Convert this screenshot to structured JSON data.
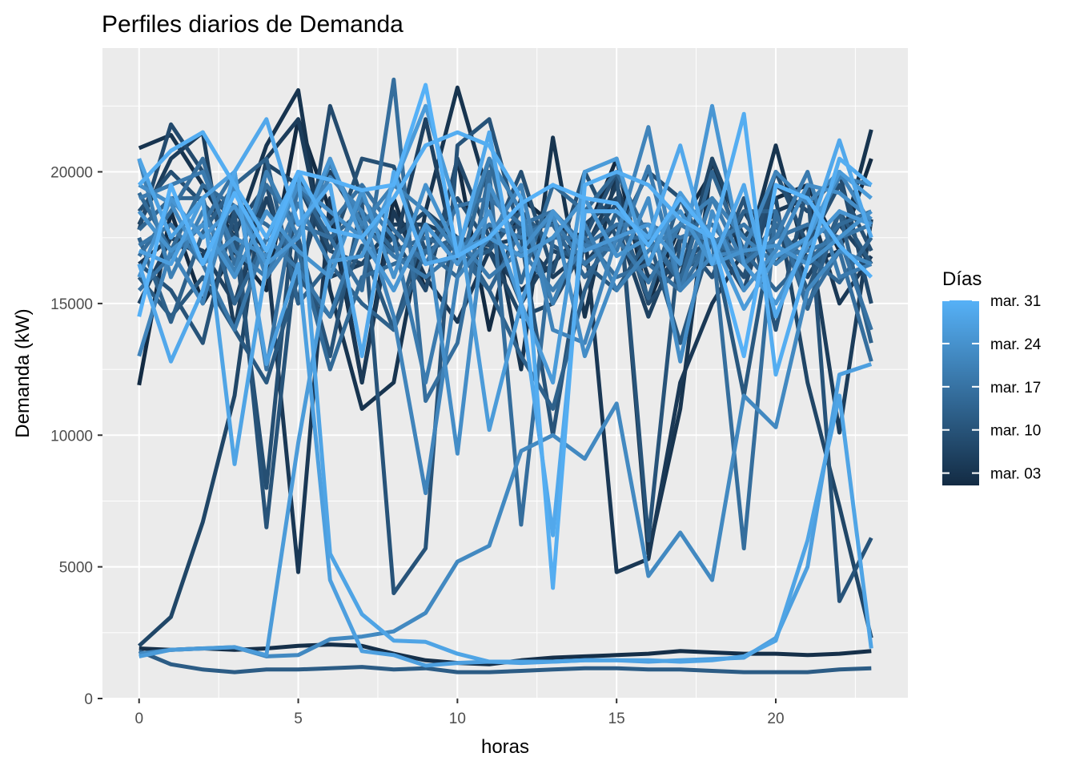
{
  "chart_data": {
    "type": "line",
    "title": "Perfiles diarios de Demanda",
    "xlabel": "horas",
    "ylabel": "Demanda (kW)",
    "xlim": [
      -1.15,
      24.15
    ],
    "ylim": [
      0,
      24700
    ],
    "x_ticks": [
      0,
      5,
      10,
      15,
      20
    ],
    "y_ticks": [
      0,
      5000,
      10000,
      15000,
      20000
    ],
    "x_minor": [
      2.5,
      7.5,
      12.5,
      17.5,
      22.5
    ],
    "y_minor": [
      2500,
      7500,
      12500,
      17500,
      22500
    ],
    "grid": true,
    "legend": {
      "title": "Días",
      "position": "right",
      "labels": [
        "mar. 31",
        "mar. 24",
        "mar. 17",
        "mar. 10",
        "mar. 03"
      ],
      "color_low": "#132B43",
      "color_high": "#56B1F7"
    },
    "colors": {
      "panel": "#EBEBEB",
      "grid": "#FFFFFF"
    },
    "x": [
      0,
      1,
      2,
      3,
      4,
      5,
      6,
      7,
      8,
      9,
      10,
      11,
      12,
      13,
      14,
      15,
      16,
      17,
      18,
      19,
      20,
      21,
      22,
      23
    ],
    "series": [
      {
        "day": 1,
        "values": [
          11900,
          18500,
          15000,
          17000,
          15500,
          22000,
          18500,
          12000,
          19000,
          15500,
          20500,
          14000,
          19000,
          18000,
          17500,
          20500,
          15000,
          18000,
          20000,
          17000,
          19000,
          19500,
          17000,
          20500
        ]
      },
      {
        "day": 2,
        "values": [
          1900,
          1850,
          1900,
          1850,
          1900,
          2000,
          2050,
          2000,
          1700,
          1450,
          1350,
          1300,
          1450,
          1550,
          1600,
          1650,
          1700,
          1800,
          1750,
          1700,
          1700,
          1650,
          1700,
          1800
        ]
      },
      {
        "day": 3,
        "values": [
          20900,
          21400,
          19500,
          17500,
          21000,
          23100,
          15500,
          11000,
          12000,
          18500,
          23200,
          19000,
          12500,
          21300,
          14500,
          20000,
          5500,
          11000,
          20500,
          16500,
          21000,
          16500,
          17000,
          21600
        ]
      },
      {
        "day": 4,
        "values": [
          16500,
          17500,
          16800,
          18500,
          17000,
          4800,
          19000,
          12000,
          18500,
          16000,
          14300,
          17000,
          15500,
          16500,
          17800,
          4800,
          5300,
          12000,
          15000,
          17000,
          18500,
          19000,
          15000,
          16800
        ]
      },
      {
        "day": 5,
        "values": [
          18000,
          20500,
          21500,
          14000,
          20500,
          22000,
          16000,
          16500,
          18000,
          18000,
          17500,
          17200,
          17500,
          16000,
          17000,
          19500,
          16000,
          16500,
          16500,
          18500,
          16500,
          18000,
          10100,
          18200
        ]
      },
      {
        "day": 6,
        "values": [
          15000,
          17500,
          17000,
          15000,
          19000,
          16000,
          20000,
          18000,
          17000,
          22000,
          16500,
          18000,
          15000,
          17000,
          16500,
          18000,
          14500,
          17500,
          16000,
          18500,
          18000,
          16000,
          18000,
          16500
        ]
      },
      {
        "day": 7,
        "values": [
          2000,
          3100,
          6700,
          11500,
          20300,
          19500,
          17000,
          16500,
          17500,
          18500,
          17500,
          17000,
          14500,
          15000,
          18000,
          19000,
          16500,
          16000,
          20500,
          17500,
          19000,
          12000,
          7300,
          2300
        ]
      },
      {
        "day": 8,
        "values": [
          17800,
          21800,
          20000,
          17800,
          19500,
          15000,
          22500,
          19000,
          17500,
          15500,
          20500,
          17500,
          18000,
          15000,
          17200,
          18800,
          15000,
          16500,
          17500,
          15500,
          19500,
          18500,
          20000,
          15000
        ]
      },
      {
        "day": 9,
        "values": [
          18500,
          20000,
          18800,
          17500,
          8000,
          20000,
          17000,
          20500,
          20200,
          17000,
          19000,
          17200,
          20000,
          16200,
          20000,
          17500,
          20000,
          19000,
          17500,
          16000,
          20000,
          17200,
          19500,
          17000
        ]
      },
      {
        "day": 10,
        "values": [
          16500,
          15500,
          13500,
          18500,
          6500,
          17500,
          13000,
          18800,
          4000,
          5700,
          21000,
          22000,
          17500,
          10000,
          17500,
          20000,
          6000,
          17500,
          16000,
          19000,
          14000,
          19500,
          3700,
          6100
        ]
      },
      {
        "day": 11,
        "values": [
          16000,
          14500,
          16000,
          14000,
          12000,
          16000,
          14500,
          17200,
          14000,
          18000,
          16500,
          17000,
          18500,
          17200,
          16500,
          15500,
          17500,
          13500,
          17500,
          11500,
          18500,
          15500,
          18500,
          16500
        ]
      },
      {
        "day": 12,
        "values": [
          1800,
          1300,
          1100,
          1000,
          1100,
          1100,
          1150,
          1200,
          1100,
          1150,
          1000,
          1000,
          1050,
          1100,
          1150,
          1150,
          1100,
          1100,
          1050,
          1000,
          1000,
          1000,
          1100,
          1150
        ]
      },
      {
        "day": 13,
        "values": [
          17500,
          14300,
          17700,
          19500,
          20500,
          15000,
          16500,
          15000,
          14000,
          17000,
          17500,
          15500,
          13000,
          11000,
          15500,
          18500,
          15200,
          19000,
          16500,
          18500,
          18500,
          14800,
          18500,
          13500
        ]
      },
      {
        "day": 14,
        "values": [
          17800,
          19000,
          19000,
          15000,
          17500,
          19500,
          17500,
          18500,
          17000,
          17500,
          17000,
          15500,
          17800,
          18000,
          16000,
          17500,
          17500,
          15800,
          20000,
          17000,
          15500,
          16800,
          15800,
          17500
        ]
      },
      {
        "day": 15,
        "values": [
          19200,
          17000,
          19500,
          18700,
          18000,
          17000,
          12500,
          16000,
          16500,
          17000,
          16000,
          20500,
          15800,
          19500,
          18500,
          20000,
          17500,
          16000,
          17500,
          16500,
          18000,
          16500,
          18000,
          18500
        ]
      },
      {
        "day": 16,
        "values": [
          16800,
          18500,
          20500,
          16500,
          19500,
          18000,
          17500,
          15500,
          23500,
          11300,
          13500,
          20000,
          6600,
          17500,
          17500,
          16000,
          16500,
          15500,
          17500,
          5700,
          18500,
          15000,
          17000,
          12800
        ]
      },
      {
        "day": 17,
        "values": [
          15500,
          16800,
          18000,
          20000,
          12500,
          19500,
          18000,
          19500,
          17800,
          16500,
          18700,
          19000,
          18000,
          18500,
          17200,
          18000,
          18000,
          17500,
          18000,
          16500,
          17500,
          18000,
          17500,
          14000
        ]
      },
      {
        "day": 18,
        "values": [
          17200,
          18000,
          16500,
          14000,
          17500,
          16300,
          14500,
          18000,
          16800,
          16000,
          17000,
          18000,
          17500,
          18200,
          16500,
          17500,
          15800,
          18000,
          17300,
          18000,
          16800,
          17000,
          17500,
          18000
        ]
      },
      {
        "day": 19,
        "values": [
          19000,
          19500,
          20000,
          17000,
          16000,
          18800,
          16500,
          19000,
          17500,
          12000,
          17500,
          16000,
          17000,
          15500,
          17200,
          17000,
          20200,
          15500,
          19000,
          16500,
          17500,
          20000,
          16000,
          16500
        ]
      },
      {
        "day": 20,
        "values": [
          20500,
          16000,
          18500,
          16200,
          20000,
          17500,
          20300,
          18000,
          19500,
          18500,
          17000,
          20500,
          18500,
          15000,
          18000,
          15500,
          17000,
          18000,
          19000,
          17500,
          16500,
          17500,
          19800,
          19500
        ]
      },
      {
        "day": 21,
        "values": [
          13000,
          17000,
          15000,
          19500,
          16000,
          17700,
          19800,
          18500,
          14500,
          7800,
          16000,
          17500,
          19500,
          14000,
          13500,
          17500,
          21700,
          15500,
          16800,
          17000,
          20000,
          18800,
          20000,
          18000
        ]
      },
      {
        "day": 22,
        "values": [
          1700,
          1850,
          1900,
          1950,
          1600,
          1650,
          2250,
          2350,
          2550,
          3250,
          5200,
          5800,
          9400,
          10000,
          9100,
          11200,
          4650,
          6300,
          4500,
          11500,
          10300,
          15500,
          17000,
          16500
        ]
      },
      {
        "day": 23,
        "values": [
          19500,
          18800,
          16500,
          17500,
          16800,
          19500,
          18500,
          17500,
          15500,
          18000,
          9300,
          19500,
          17000,
          18500,
          13000,
          16200,
          19000,
          12800,
          18500,
          15500,
          17000,
          19500,
          19200,
          18200
        ]
      },
      {
        "day": 24,
        "values": [
          18500,
          17000,
          18000,
          16000,
          18500,
          17000,
          16000,
          19300,
          16000,
          19500,
          17000,
          17500,
          16800,
          17500,
          19000,
          16800,
          17500,
          18500,
          16500,
          17000,
          17200,
          16500,
          17500,
          18500
        ]
      },
      {
        "day": 25,
        "values": [
          16000,
          19000,
          17500,
          18700,
          16500,
          17500,
          20500,
          17500,
          15500,
          18000,
          16500,
          18500,
          15000,
          18500,
          17000,
          17500,
          18000,
          16500,
          22500,
          16500,
          15000,
          17200,
          18500,
          18000
        ]
      },
      {
        "day": 26,
        "values": [
          1600,
          1850,
          1900,
          1950,
          1650,
          9700,
          16600,
          16800,
          19500,
          22500,
          18500,
          10200,
          15000,
          12000,
          20000,
          20500,
          16500,
          19200,
          17500,
          14800,
          16800,
          17500,
          20000,
          19000
        ]
      },
      {
        "day": 27,
        "values": [
          17000,
          16500,
          19000,
          20000,
          12700,
          16500,
          4500,
          1800,
          1650,
          1250,
          1350,
          1400,
          1350,
          1400,
          1450,
          1450,
          1400,
          1450,
          1500,
          1550,
          2300,
          5000,
          12300,
          12700
        ]
      },
      {
        "day": 28,
        "values": [
          20500,
          17500,
          19000,
          8900,
          16500,
          20000,
          5500,
          3200,
          2200,
          2150,
          1700,
          1400,
          1400,
          1400,
          1450,
          1450,
          1450,
          1400,
          1450,
          1600,
          2200,
          6000,
          11500,
          1900
        ]
      },
      {
        "day": 29,
        "values": [
          16500,
          12800,
          15500,
          20000,
          22000,
          18000,
          19500,
          13000,
          20000,
          16500,
          16800,
          21500,
          15000,
          6200,
          18500,
          18500,
          17500,
          21000,
          16500,
          19500,
          14500,
          17500,
          21200,
          17500
        ]
      },
      {
        "day": 30,
        "values": [
          19500,
          20800,
          21500,
          19500,
          17500,
          20000,
          17800,
          17500,
          19000,
          21000,
          21500,
          21000,
          19000,
          4200,
          19500,
          20000,
          19500,
          18200,
          17500,
          22200,
          12300,
          16500,
          20500,
          19500
        ]
      },
      {
        "day": 31,
        "values": [
          14500,
          19500,
          16500,
          19200,
          17000,
          20000,
          19700,
          19300,
          19500,
          23300,
          16800,
          17500,
          18800,
          19500,
          19000,
          18800,
          17200,
          19000,
          17500,
          13000,
          19500,
          19000,
          17200,
          16000
        ]
      }
    ]
  }
}
